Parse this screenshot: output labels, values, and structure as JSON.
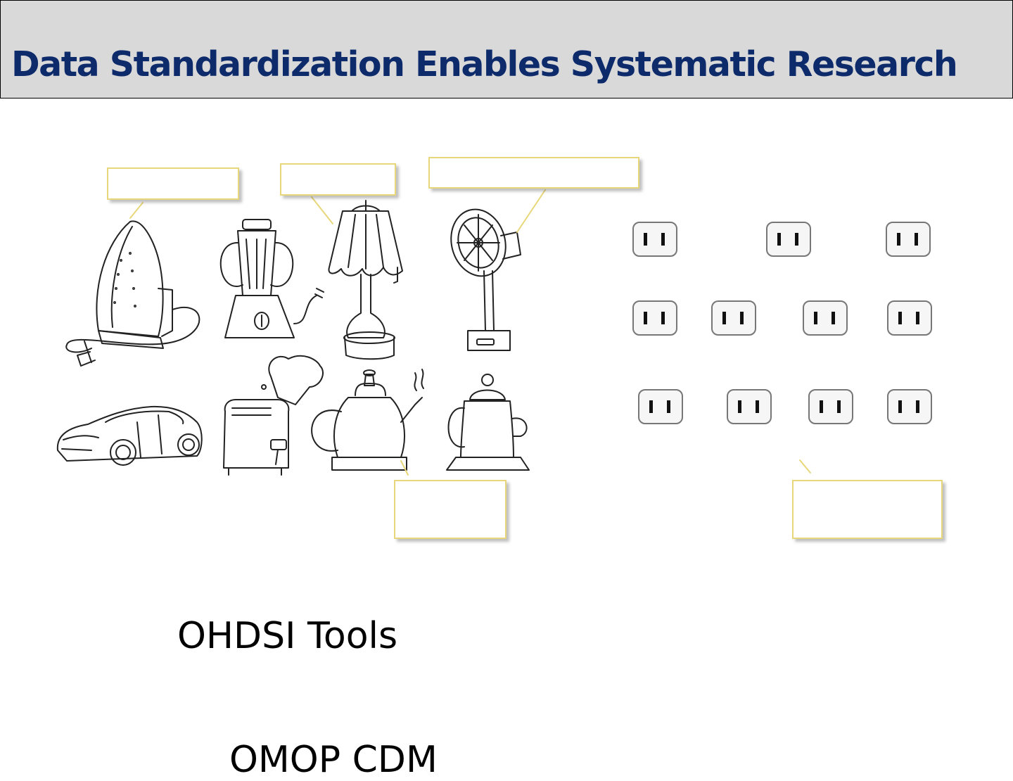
{
  "slide": {
    "title": "Data Standardization Enables Systematic Research",
    "tools_label": "OHDSI Tools",
    "cdm_label": "OMOP CDM"
  },
  "colors": {
    "title": "#0d2a6b",
    "title_bar": "#d9d9d9",
    "callout_border": "#e8d77a",
    "leader_line": "#e8d77a"
  },
  "illustration": {
    "appliances": [
      "iron-icon",
      "blender-icon",
      "lamp-icon",
      "fan-icon",
      "car-icon",
      "toaster-icon",
      "kettle-icon",
      "coffee-pot-icon"
    ],
    "outlet_icon": "power-outlet-icon",
    "outlet_rows": [
      3,
      4,
      4
    ]
  }
}
